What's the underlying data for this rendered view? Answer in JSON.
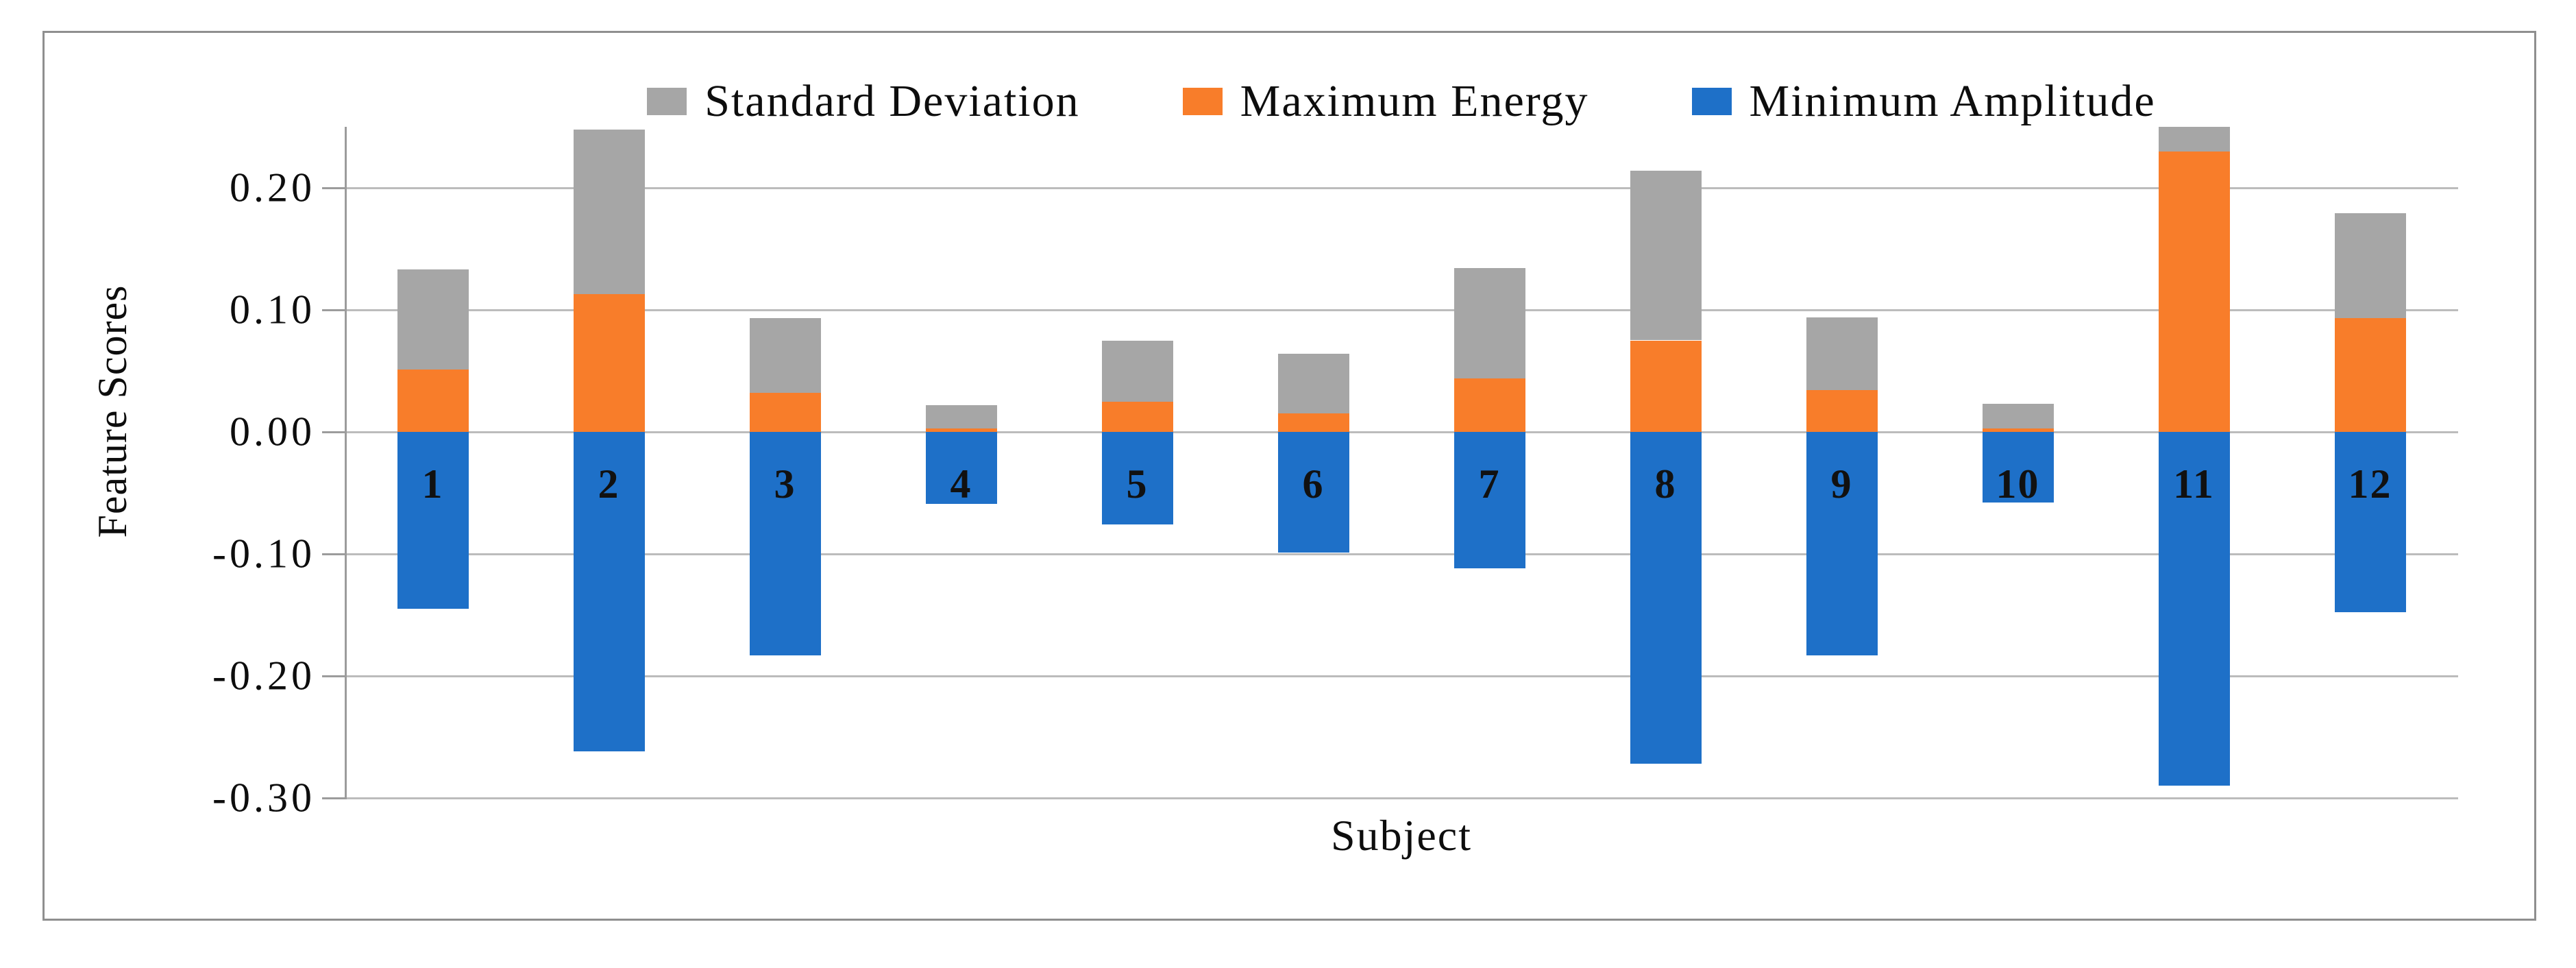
{
  "chart_data": {
    "type": "bar",
    "stacked": true,
    "title": "",
    "xlabel": "Subject",
    "ylabel": "Feature Scores",
    "categories": [
      "1",
      "2",
      "3",
      "4",
      "5",
      "6",
      "7",
      "8",
      "9",
      "10",
      "11",
      "12"
    ],
    "series": [
      {
        "name": "Standard Deviation",
        "color": "#a6a6a6",
        "values": [
          0.082,
          0.135,
          0.061,
          0.019,
          0.05,
          0.049,
          0.09,
          0.139,
          0.06,
          0.02,
          0.02,
          0.086
        ]
      },
      {
        "name": "Maximum Energy",
        "color": "#f87d2a",
        "values": [
          0.051,
          0.113,
          0.032,
          0.003,
          0.025,
          0.015,
          0.044,
          0.075,
          0.034,
          0.003,
          0.23,
          0.093
        ]
      },
      {
        "name": "Minimum Amplitude",
        "color": "#1e70c8",
        "values": [
          -0.145,
          -0.262,
          -0.183,
          -0.059,
          -0.076,
          -0.099,
          -0.112,
          -0.272,
          -0.183,
          -0.058,
          -0.29,
          -0.148
        ]
      }
    ],
    "yticks": [
      0.2,
      0.1,
      0.0,
      -0.1,
      -0.2,
      -0.3
    ],
    "ytick_labels": [
      "0.20",
      "0.10",
      "0.00",
      "-0.10",
      "-0.20",
      "-0.30"
    ],
    "ylim": [
      -0.3,
      0.25
    ],
    "grid": true,
    "legend_position": "top-center",
    "axis_color": "#9c9c9c",
    "gridline_color": "#bcbcbc",
    "frame_color": "#8f8f8f"
  }
}
